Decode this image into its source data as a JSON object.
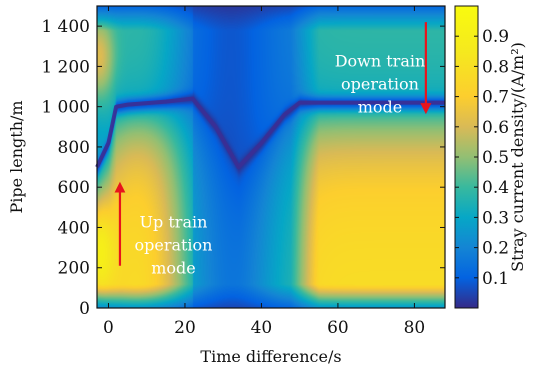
{
  "chart_data": {
    "type": "heatmap",
    "title": "",
    "xlabel": "Time difference/s",
    "ylabel": "Pipe length/m",
    "colorbar_label": "Stray current density/(A/m²)",
    "xlim": [
      -3,
      88
    ],
    "ylim": [
      0,
      1500
    ],
    "clim": [
      0,
      1.0
    ],
    "x_ticks": [
      0,
      20,
      40,
      60,
      80
    ],
    "x_tick_labels": [
      "0",
      "20",
      "40",
      "60",
      "80"
    ],
    "y_ticks": [
      0,
      200,
      400,
      600,
      800,
      1000,
      1200,
      1400
    ],
    "y_tick_labels": [
      "0",
      "200",
      "400",
      "600",
      "800",
      "1 000",
      "1 200",
      "1 400"
    ],
    "colorbar_ticks": [
      0.1,
      0.2,
      0.3,
      0.4,
      0.5,
      0.6,
      0.7,
      0.8,
      0.9
    ],
    "colorbar_tick_labels": [
      "0.1",
      "0.2",
      "0.3",
      "0.4",
      "0.5",
      "0.6",
      "0.7",
      "0.8",
      "0.9"
    ],
    "colormap": "parula",
    "grid": false,
    "annotations": [
      {
        "text_lines": [
          "Down train",
          "operation",
          "mode"
        ],
        "color": "#ffffff",
        "x": 71,
        "y": 1200
      },
      {
        "text_lines": [
          "Up train",
          "operation",
          "mode"
        ],
        "color": "#ffffff",
        "x": 17,
        "y": 400
      }
    ],
    "arrows": [
      {
        "from": [
          3,
          210
        ],
        "to": [
          3,
          600
        ],
        "color": "#e8141c"
      },
      {
        "from": [
          83,
          1420
        ],
        "to": [
          83,
          990
        ],
        "color": "#e8141c"
      }
    ],
    "minimum_line": [
      {
        "x": -3,
        "y": 700
      },
      {
        "x": 0,
        "y": 820
      },
      {
        "x": 2,
        "y": 1000
      },
      {
        "x": 5,
        "y": 1010
      },
      {
        "x": 15,
        "y": 1025
      },
      {
        "x": 22,
        "y": 1040
      },
      {
        "x": 28,
        "y": 900
      },
      {
        "x": 34,
        "y": 700
      },
      {
        "x": 40,
        "y": 820
      },
      {
        "x": 46,
        "y": 960
      },
      {
        "x": 50,
        "y": 1020
      },
      {
        "x": 88,
        "y": 1020
      }
    ]
  }
}
